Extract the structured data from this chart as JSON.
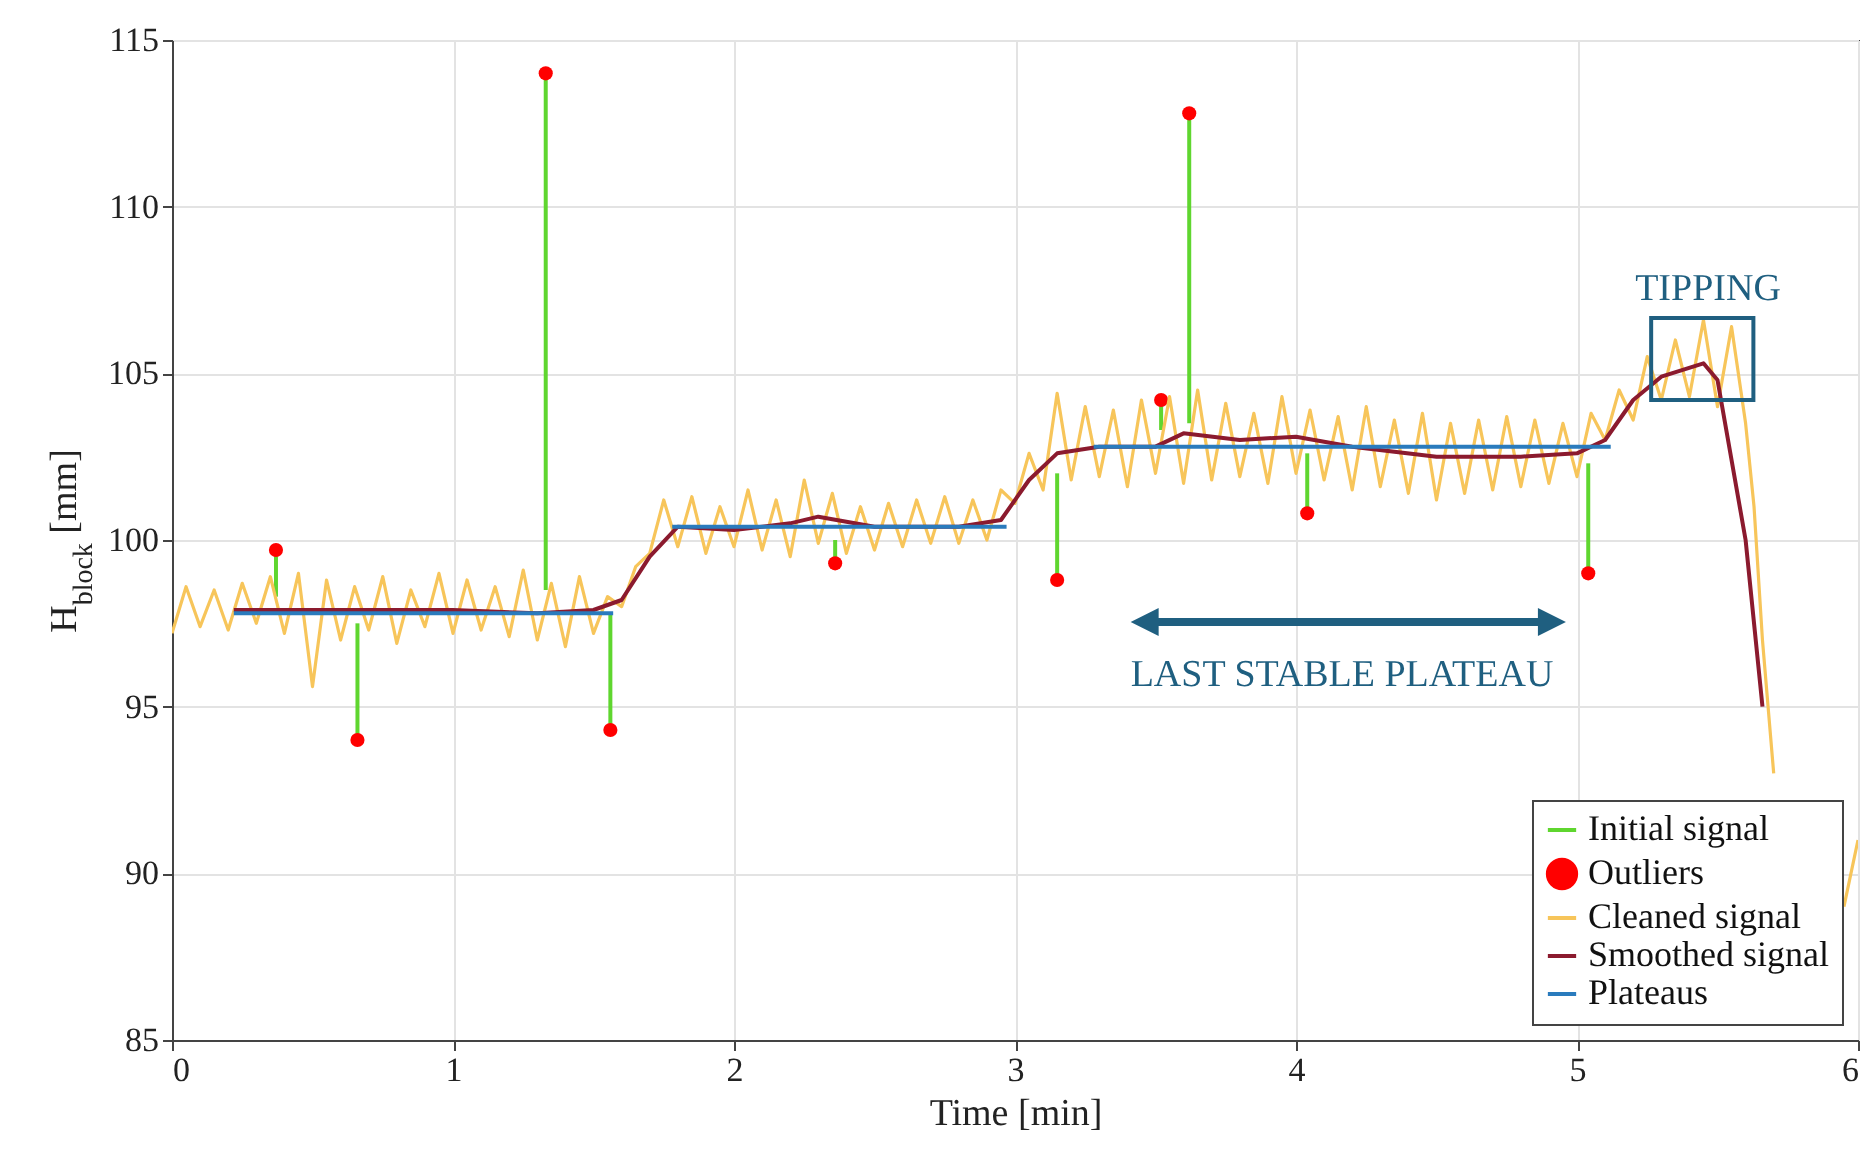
{
  "chart_data": {
    "type": "line",
    "xlabel": "Time [min]",
    "ylabel": "H$_{block}$ [mm]",
    "xlim": [
      0,
      6
    ],
    "xticks": [
      0,
      1,
      2,
      3,
      4,
      5,
      6
    ],
    "ylim": [
      85,
      115
    ],
    "yticks": [
      85,
      90,
      95,
      100,
      105,
      110,
      115
    ],
    "grid": true,
    "legend": "bottom right",
    "annotations": [
      "TIPPING",
      "LAST STABLE PLATEAU"
    ],
    "series": [
      {
        "name": "Initial signal",
        "color": "#5fd62f",
        "x": [
          0.37,
          0.37,
          0.66,
          0.66,
          1.33,
          1.33,
          1.56,
          1.56,
          2.36,
          2.36,
          3.15,
          3.15,
          3.52,
          3.52,
          3.62,
          3.62,
          4.04,
          4.04,
          5.04,
          5.04
        ],
        "values": [
          98.3,
          99.7,
          97.5,
          94.0,
          98.5,
          114.0,
          97.8,
          94.3,
          100.0,
          99.3,
          102.0,
          98.8,
          103.3,
          104.2,
          103.5,
          112.8,
          102.6,
          100.8,
          102.3,
          99.0
        ]
      },
      {
        "name": "Outliers",
        "type": "scatter",
        "color": "#ff0000",
        "marker": "circle",
        "x": [
          0.37,
          0.66,
          1.33,
          1.56,
          2.36,
          3.15,
          3.52,
          3.62,
          4.04,
          5.04
        ],
        "values": [
          99.7,
          94.0,
          114.0,
          94.3,
          99.3,
          98.8,
          104.2,
          112.8,
          100.8,
          99.0
        ]
      },
      {
        "name": "Cleaned signal",
        "color": "#f7c55a",
        "x": [
          0,
          0.05,
          0.1,
          0.15,
          0.2,
          0.25,
          0.3,
          0.35,
          0.4,
          0.45,
          0.5,
          0.55,
          0.6,
          0.65,
          0.7,
          0.75,
          0.8,
          0.85,
          0.9,
          0.95,
          1.0,
          1.05,
          1.1,
          1.15,
          1.2,
          1.25,
          1.3,
          1.35,
          1.4,
          1.45,
          1.5,
          1.55,
          1.6,
          1.65,
          1.7,
          1.75,
          1.8,
          1.85,
          1.9,
          1.95,
          2.0,
          2.05,
          2.1,
          2.15,
          2.2,
          2.25,
          2.3,
          2.35,
          2.4,
          2.45,
          2.5,
          2.55,
          2.6,
          2.65,
          2.7,
          2.75,
          2.8,
          2.85,
          2.9,
          2.95,
          3.0,
          3.05,
          3.1,
          3.15,
          3.2,
          3.25,
          3.3,
          3.35,
          3.4,
          3.45,
          3.5,
          3.55,
          3.6,
          3.65,
          3.7,
          3.75,
          3.8,
          3.85,
          3.9,
          3.95,
          4.0,
          4.05,
          4.1,
          4.15,
          4.2,
          4.25,
          4.3,
          4.35,
          4.4,
          4.45,
          4.5,
          4.55,
          4.6,
          4.65,
          4.7,
          4.75,
          4.8,
          4.85,
          4.9,
          4.95,
          5.0,
          5.05,
          5.1,
          5.15,
          5.2,
          5.25,
          5.3,
          5.35,
          5.4,
          5.45,
          5.5,
          5.55,
          5.6,
          5.63,
          5.66,
          5.7,
          5.75,
          5.8,
          5.85,
          5.9,
          5.95,
          6.0
        ],
        "values": [
          97.2,
          98.6,
          97.4,
          98.5,
          97.3,
          98.7,
          97.5,
          98.9,
          97.2,
          99.0,
          95.6,
          98.8,
          97.0,
          98.6,
          97.3,
          98.9,
          96.9,
          98.5,
          97.4,
          99.0,
          97.2,
          98.8,
          97.3,
          98.6,
          97.1,
          99.1,
          97.0,
          98.7,
          96.8,
          98.9,
          97.2,
          98.3,
          98.0,
          99.2,
          99.6,
          101.2,
          99.8,
          101.3,
          99.6,
          101.0,
          99.8,
          101.5,
          99.7,
          101.2,
          99.5,
          101.8,
          99.9,
          101.4,
          99.6,
          101.0,
          99.7,
          101.1,
          99.8,
          101.2,
          99.9,
          101.3,
          99.9,
          101.2,
          100.0,
          101.5,
          101.1,
          102.6,
          101.5,
          104.4,
          101.8,
          104.0,
          101.9,
          103.9,
          101.6,
          104.2,
          102.0,
          104.3,
          101.7,
          104.5,
          101.8,
          104.1,
          101.9,
          103.8,
          101.7,
          104.3,
          102.0,
          103.9,
          101.8,
          103.7,
          101.5,
          104.0,
          101.6,
          103.6,
          101.4,
          103.8,
          101.2,
          103.5,
          101.4,
          103.6,
          101.5,
          103.7,
          101.6,
          103.6,
          101.7,
          103.5,
          101.9,
          103.8,
          103.0,
          104.5,
          103.6,
          105.5,
          104.2,
          106.0,
          104.3,
          106.6,
          104.0,
          106.4,
          103.5,
          101.0,
          97.0,
          93.0,
          null,
          null,
          null,
          null,
          89.0,
          91.0
        ]
      },
      {
        "name": "Smoothed signal",
        "color": "#8b1a2e",
        "x": [
          0.22,
          0.5,
          1.0,
          1.3,
          1.5,
          1.6,
          1.7,
          1.8,
          2.0,
          2.2,
          2.3,
          2.5,
          2.8,
          2.95,
          3.05,
          3.15,
          3.3,
          3.5,
          3.6,
          3.8,
          4.0,
          4.2,
          4.5,
          4.8,
          5.0,
          5.1,
          5.2,
          5.3,
          5.45,
          5.5,
          5.6,
          5.66
        ],
        "values": [
          97.9,
          97.9,
          97.9,
          97.8,
          97.9,
          98.2,
          99.5,
          100.4,
          100.3,
          100.5,
          100.7,
          100.4,
          100.4,
          100.6,
          101.8,
          102.6,
          102.8,
          102.8,
          103.2,
          103.0,
          103.1,
          102.8,
          102.5,
          102.5,
          102.6,
          103.0,
          104.2,
          104.9,
          105.3,
          104.8,
          100.0,
          95.0
        ]
      },
      {
        "name": "Plateaus",
        "color": "#2a7bbd",
        "x": [
          0.22,
          1.57,
          1.7,
          1.78,
          2.97,
          3.1,
          3.28,
          5.12
        ],
        "values": [
          97.8,
          97.8,
          null,
          100.4,
          100.4,
          null,
          102.8,
          102.8
        ]
      }
    ]
  }
}
